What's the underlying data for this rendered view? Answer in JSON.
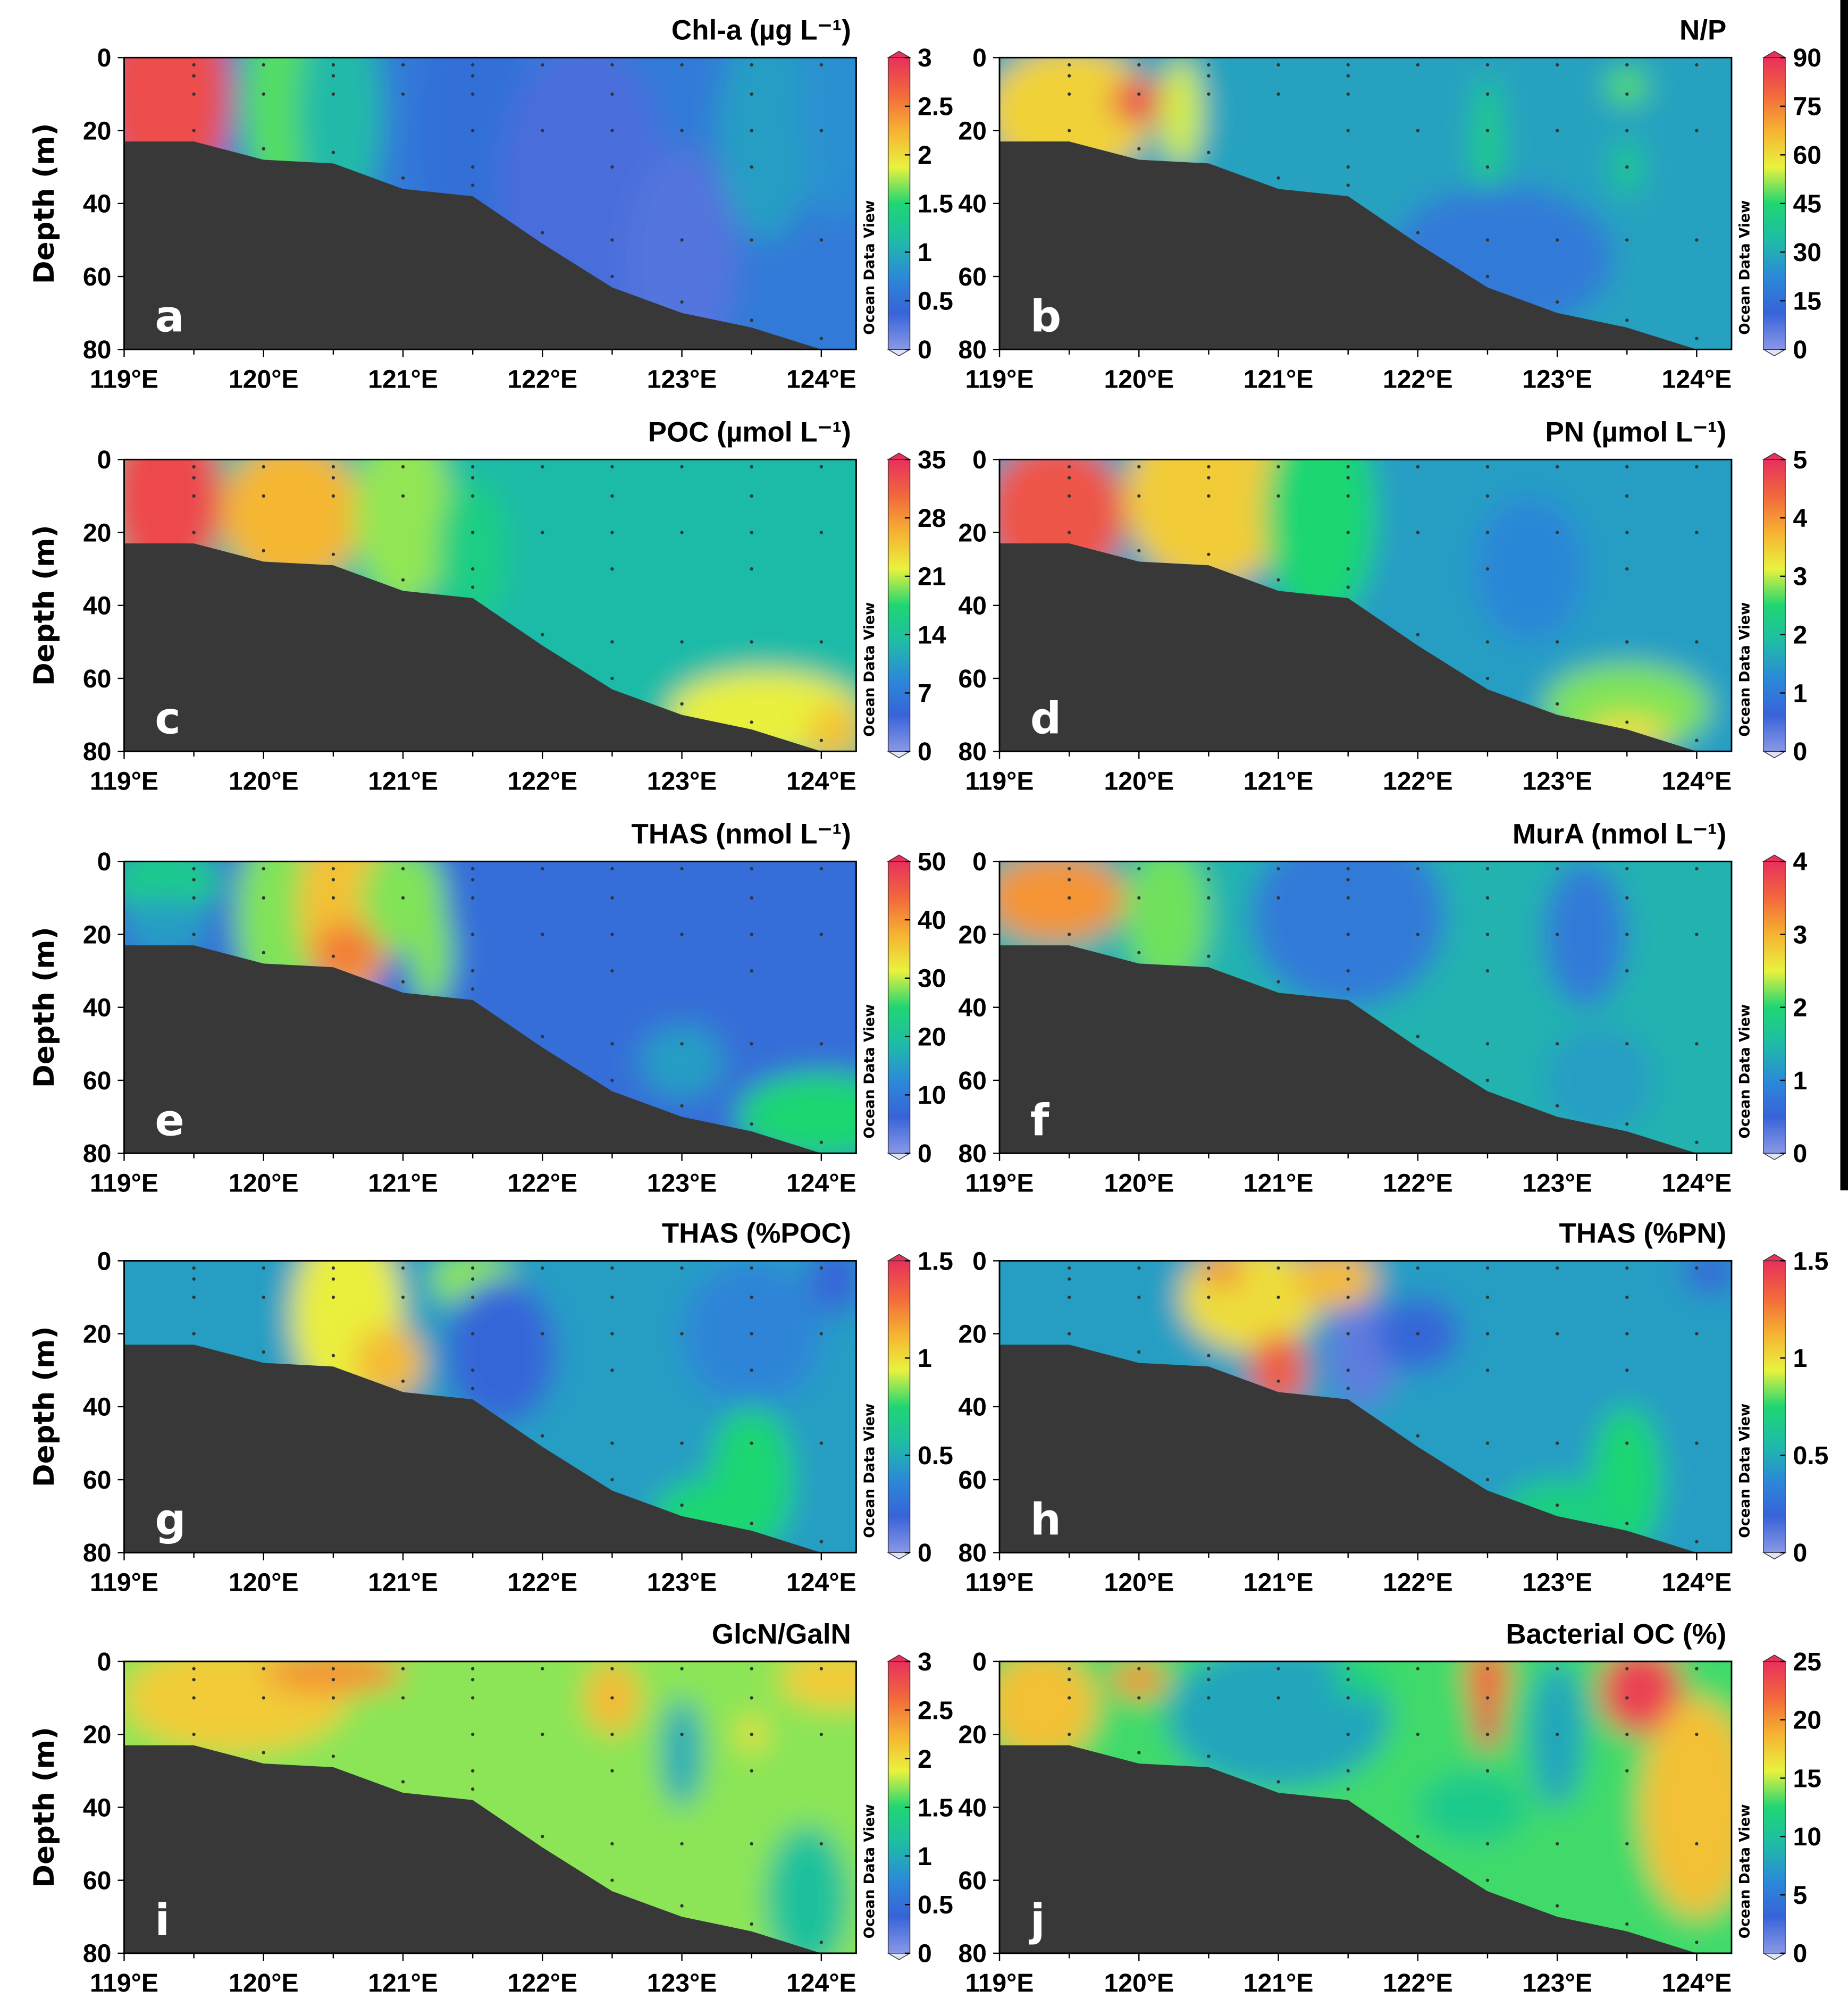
{
  "colormap": [
    "#8a98e6",
    "#3763d8",
    "#2b8ad8",
    "#1fbca6",
    "#1fd672",
    "#e9f23e",
    "#f6b232",
    "#f2683c",
    "#e8305c"
  ],
  "colors": {
    "bathymetry": "#383838",
    "sample": "#333333",
    "label": "#ffffff"
  },
  "shared": {
    "ylabel": "Depth (m)",
    "odv_label": "Ocean Data View",
    "xlim": [
      119,
      124.25
    ],
    "ylim": [
      0,
      80
    ],
    "xticks": [
      119,
      120,
      121,
      122,
      123,
      124
    ],
    "xtick_labels": [
      "119°E",
      "120°E",
      "121°E",
      "122°E",
      "123°E",
      "124°E"
    ],
    "yticks": [
      0,
      20,
      40,
      60,
      80
    ],
    "ytick_labels": [
      "0",
      "20",
      "40",
      "60",
      "80"
    ],
    "bathymetry": [
      [
        119,
        23
      ],
      [
        119.5,
        23
      ],
      [
        120,
        28
      ],
      [
        120.5,
        29
      ],
      [
        121,
        36
      ],
      [
        121.5,
        38
      ],
      [
        122,
        51
      ],
      [
        122.5,
        63
      ],
      [
        123,
        70
      ],
      [
        123.5,
        74
      ],
      [
        124,
        80
      ]
    ],
    "stations": [
      {
        "lon": 119.5,
        "depths": [
          2,
          5,
          10,
          20
        ]
      },
      {
        "lon": 120,
        "depths": [
          2,
          10,
          25
        ]
      },
      {
        "lon": 120.5,
        "depths": [
          2,
          5,
          10,
          26
        ]
      },
      {
        "lon": 121,
        "depths": [
          2,
          10,
          33
        ]
      },
      {
        "lon": 121.5,
        "depths": [
          2,
          5,
          10,
          20,
          30,
          35
        ]
      },
      {
        "lon": 122,
        "depths": [
          2,
          20,
          48
        ]
      },
      {
        "lon": 122.5,
        "depths": [
          2,
          10,
          20,
          30,
          50,
          60
        ]
      },
      {
        "lon": 123,
        "depths": [
          2,
          20,
          50,
          67
        ]
      },
      {
        "lon": 123.5,
        "depths": [
          2,
          10,
          20,
          30,
          50,
          72
        ]
      },
      {
        "lon": 124,
        "depths": [
          2,
          20,
          50,
          77
        ]
      }
    ]
  },
  "chart_data": [
    {
      "type": "heatmap",
      "letter": "a",
      "title": "Chl-a (µg L⁻¹)",
      "range": [
        0,
        3
      ],
      "cbar_ticks": [
        "0",
        "0.5",
        "1",
        "1.5",
        "2",
        "2.5",
        "3"
      ],
      "background": 0.6,
      "field": [
        [
          119.3,
          10,
          0.45,
          30,
          2.8
        ],
        [
          120.1,
          12,
          0.25,
          30,
          1.6
        ],
        [
          120.55,
          15,
          0.3,
          30,
          1.1
        ],
        [
          121.5,
          20,
          0.4,
          40,
          0.5
        ],
        [
          122.3,
          35,
          0.6,
          40,
          0.3
        ],
        [
          123,
          55,
          0.4,
          30,
          0.25
        ],
        [
          123.6,
          20,
          0.35,
          30,
          0.9
        ],
        [
          124.1,
          15,
          0.25,
          30,
          0.8
        ]
      ]
    },
    {
      "type": "heatmap",
      "letter": "b",
      "title": "N/P",
      "range": [
        0,
        90
      ],
      "cbar_ticks": [
        "0",
        "15",
        "30",
        "45",
        "60",
        "75",
        "90"
      ],
      "background": 28,
      "field": [
        [
          119.5,
          15,
          0.6,
          18,
          62
        ],
        [
          120,
          12,
          0.2,
          6,
          85
        ],
        [
          120.3,
          15,
          0.15,
          15,
          55
        ],
        [
          122.5,
          25,
          0.1,
          20,
          42
        ],
        [
          123.5,
          8,
          0.15,
          5,
          48
        ],
        [
          123.5,
          30,
          0.1,
          8,
          40
        ],
        [
          122.6,
          55,
          0.8,
          20,
          18
        ]
      ]
    },
    {
      "type": "heatmap",
      "letter": "c",
      "title": "POC (µmol L⁻¹)",
      "range": [
        0,
        35
      ],
      "cbar_ticks": [
        "0",
        "7",
        "14",
        "21",
        "28",
        "35"
      ],
      "background": 13,
      "field": [
        [
          119.3,
          10,
          0.4,
          25,
          33
        ],
        [
          120.2,
          15,
          0.5,
          20,
          26
        ],
        [
          121,
          15,
          0.35,
          25,
          20
        ],
        [
          121.5,
          25,
          0.25,
          20,
          16
        ],
        [
          123.6,
          70,
          0.7,
          12,
          22
        ],
        [
          124.1,
          75,
          0.2,
          8,
          25
        ]
      ]
    },
    {
      "type": "heatmap",
      "letter": "d",
      "title": "PN (µmol L⁻¹)",
      "range": [
        0,
        5
      ],
      "cbar_ticks": [
        "0",
        "1",
        "2",
        "3",
        "4",
        "5"
      ],
      "background": 1.5,
      "field": [
        [
          119.4,
          15,
          0.5,
          20,
          4.6
        ],
        [
          120.5,
          10,
          0.6,
          25,
          3.5
        ],
        [
          121.3,
          15,
          0.4,
          30,
          2.5
        ],
        [
          122.8,
          30,
          0.4,
          20,
          1.2
        ],
        [
          123.5,
          68,
          0.6,
          12,
          2.8
        ],
        [
          123.5,
          75,
          0.3,
          5,
          3.3
        ]
      ]
    },
    {
      "type": "heatmap",
      "letter": "e",
      "title": "THAS (nmol L⁻¹)",
      "range": [
        0,
        50
      ],
      "cbar_ticks": [
        "0",
        "10",
        "20",
        "30",
        "40",
        "50"
      ],
      "background": 8,
      "field": [
        [
          119.3,
          5,
          0.4,
          10,
          22
        ],
        [
          119.3,
          18,
          0.3,
          8,
          15
        ],
        [
          120.1,
          15,
          0.3,
          25,
          28
        ],
        [
          120.6,
          12,
          0.35,
          25,
          36
        ],
        [
          120.6,
          25,
          0.25,
          8,
          42
        ],
        [
          121,
          10,
          0.3,
          15,
          28
        ],
        [
          121.2,
          25,
          0.15,
          15,
          28
        ],
        [
          124,
          70,
          0.6,
          12,
          25
        ],
        [
          123,
          55,
          0.3,
          10,
          15
        ]
      ]
    },
    {
      "type": "heatmap",
      "letter": "f",
      "title": "MurA (nmol L⁻¹)",
      "range": [
        0,
        4
      ],
      "cbar_ticks": [
        "0",
        "1",
        "2",
        "3",
        "4"
      ],
      "background": 1.4,
      "field": [
        [
          119.4,
          10,
          0.5,
          12,
          3.2
        ],
        [
          120.2,
          15,
          0.3,
          20,
          2.2
        ],
        [
          121.5,
          15,
          0.7,
          25,
          0.8
        ],
        [
          123.2,
          20,
          0.3,
          20,
          0.8
        ],
        [
          123.3,
          60,
          0.4,
          15,
          1.2
        ]
      ]
    },
    {
      "type": "heatmap",
      "letter": "g",
      "title": "THAS (%POC)",
      "range": [
        0,
        1.5
      ],
      "cbar_ticks": [
        "0",
        "0.5",
        "1",
        "1.5"
      ],
      "background": 0.45,
      "field": [
        [
          120.6,
          15,
          0.4,
          25,
          0.95
        ],
        [
          120.9,
          28,
          0.25,
          10,
          1.1
        ],
        [
          121.5,
          5,
          0.3,
          8,
          0.85
        ],
        [
          121.7,
          25,
          0.4,
          20,
          0.2
        ],
        [
          123.5,
          20,
          0.5,
          20,
          0.35
        ],
        [
          123.5,
          60,
          0.3,
          20,
          0.75
        ],
        [
          123.2,
          70,
          0.4,
          10,
          0.75
        ],
        [
          124.1,
          5,
          0.2,
          10,
          0.2
        ]
      ]
    },
    {
      "type": "heatmap",
      "letter": "h",
      "title": "THAS (%PN)",
      "range": [
        0,
        1.5
      ],
      "cbar_ticks": [
        "0",
        "0.5",
        "1",
        "1.5"
      ],
      "background": 0.45,
      "field": [
        [
          120.8,
          10,
          0.5,
          15,
          1.0
        ],
        [
          120.6,
          3,
          0.15,
          4,
          1.25
        ],
        [
          121,
          30,
          0.2,
          10,
          1.35
        ],
        [
          121.6,
          25,
          0.25,
          15,
          0.1
        ],
        [
          121.4,
          5,
          0.3,
          8,
          1.1
        ],
        [
          122,
          20,
          0.3,
          10,
          0.2
        ],
        [
          123.5,
          60,
          0.25,
          20,
          0.75
        ],
        [
          123,
          70,
          0.4,
          10,
          0.7
        ],
        [
          124.1,
          3,
          0.2,
          6,
          0.2
        ]
      ]
    },
    {
      "type": "heatmap",
      "letter": "i",
      "title": "GlcN/GalN",
      "range": [
        0,
        3
      ],
      "cbar_ticks": [
        "0",
        "0.5",
        "1",
        "1.5",
        "2",
        "2.5",
        "3"
      ],
      "background": 1.7,
      "field": [
        [
          119.8,
          10,
          0.8,
          15,
          2.1
        ],
        [
          120.5,
          3,
          0.5,
          6,
          2.4
        ],
        [
          122.5,
          10,
          0.2,
          10,
          2.2
        ],
        [
          123,
          25,
          0.15,
          15,
          1.0
        ],
        [
          123.5,
          20,
          0.1,
          5,
          2.0
        ],
        [
          123.9,
          65,
          0.3,
          20,
          1.2
        ],
        [
          124.1,
          5,
          0.4,
          8,
          2.1
        ]
      ]
    },
    {
      "type": "heatmap",
      "letter": "j",
      "title": "Bacterial OC (%)",
      "range": [
        0,
        25
      ],
      "cbar_ticks": [
        "0",
        "5",
        "10",
        "15",
        "20",
        "25"
      ],
      "background": 13,
      "field": [
        [
          119.3,
          12,
          0.4,
          15,
          18
        ],
        [
          120,
          5,
          0.2,
          5,
          20
        ],
        [
          121,
          15,
          0.8,
          20,
          8
        ],
        [
          121.6,
          5,
          0.2,
          5,
          12
        ],
        [
          122.5,
          5,
          0.15,
          10,
          22
        ],
        [
          122.5,
          18,
          0.1,
          6,
          24
        ],
        [
          123,
          20,
          0.2,
          20,
          8
        ],
        [
          123.6,
          8,
          0.3,
          12,
          24
        ],
        [
          124,
          40,
          0.4,
          30,
          18
        ],
        [
          122.4,
          40,
          0.4,
          10,
          11
        ]
      ]
    }
  ]
}
